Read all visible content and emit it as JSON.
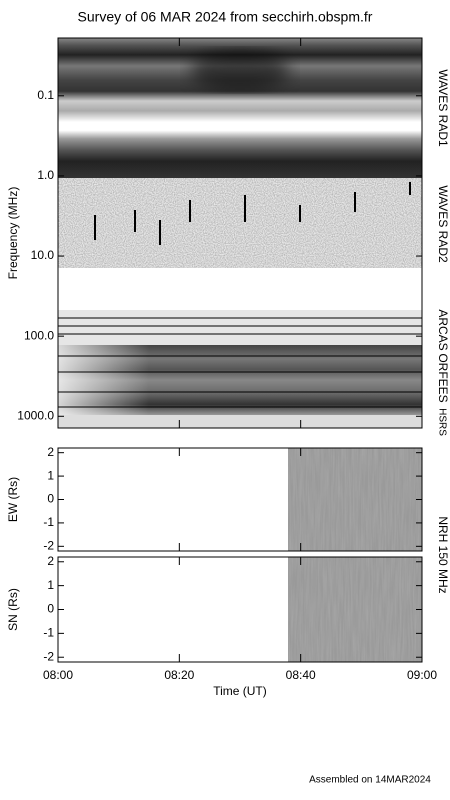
{
  "title": "Survey of 06 MAR 2024 from secchirh.obspm.fr",
  "footer": "Assembled on 14MAR2024",
  "chart_data": [
    {
      "type": "spectrogram",
      "ylabel": "Frequency (MHz)",
      "log_y": true,
      "y_inverted": true,
      "ylim": [
        0.019,
        1400
      ],
      "yticks": [
        0.1,
        {
          "value": 1,
          "label": "1.0"
        },
        {
          "value": 10,
          "label": "10.0"
        },
        {
          "value": 100,
          "label": "100.0"
        },
        {
          "value": 1000,
          "label": "1000.0"
        }
      ],
      "xlim": [
        0,
        60
      ],
      "xticks": [
        0,
        20,
        40,
        60
      ],
      "bands": [
        "WAVES RAD1",
        "WAVES RAD2",
        "ARCAS",
        "ORFEES",
        "HSRS"
      ]
    },
    {
      "type": "image",
      "ylabel": "EW (Rs)",
      "instrument": "NRH 150 MHz",
      "ylim": [
        -2.2,
        2.2
      ],
      "yticks": [
        -2,
        -1,
        0,
        1,
        2
      ],
      "xlim": [
        0,
        60
      ],
      "xticks": [
        0,
        20,
        40,
        60
      ]
    },
    {
      "type": "image",
      "ylabel": "SN (Rs)",
      "xlabel": "Time (UT)",
      "ylim": [
        -2.2,
        2.2
      ],
      "yticks": [
        -2,
        -1,
        0,
        1,
        2
      ],
      "xlim": [
        0,
        60
      ],
      "xticks": [
        {
          "value": 0,
          "label": "08:00"
        },
        {
          "value": 20,
          "label": "08:20"
        },
        {
          "value": 40,
          "label": "08:40"
        },
        {
          "value": 60,
          "label": "09:00"
        }
      ]
    }
  ]
}
